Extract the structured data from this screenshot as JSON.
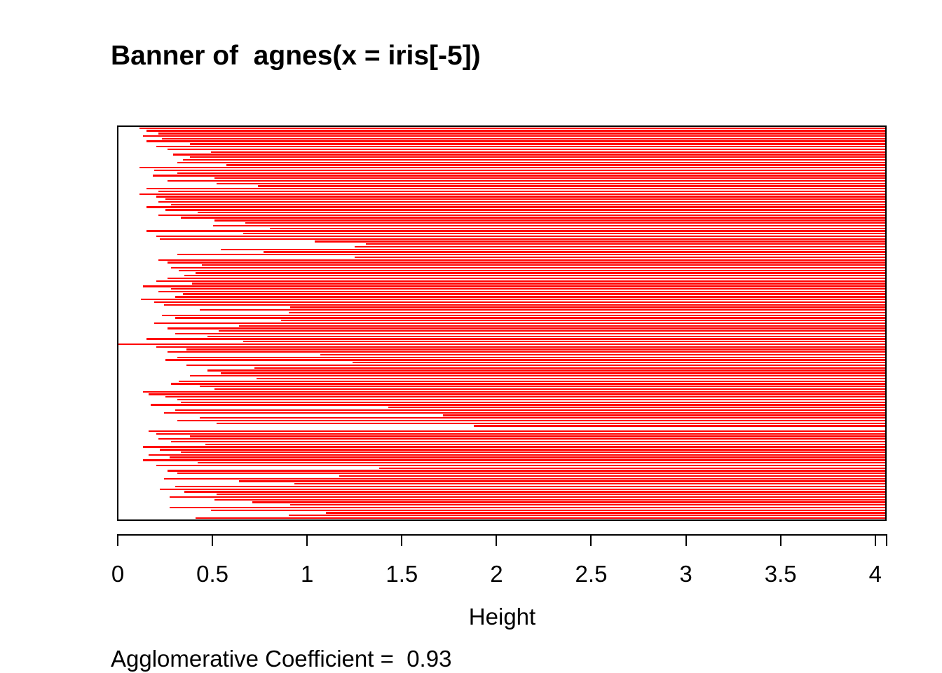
{
  "chart_data": {
    "type": "bar",
    "variant": "banner-plot",
    "title": "Banner of  agnes(x = iris[-5])",
    "xlabel": "Height",
    "footer_text": "Agglomerative Coefficient =  0.93",
    "agglomerative_coefficient": 0.93,
    "axis_min": 0,
    "axis_max": 4.06,
    "x_tick_values": [
      0,
      0.5,
      1,
      1.5,
      2,
      2.5,
      3,
      3.5,
      4
    ],
    "x_tick_labels": [
      "0",
      "0.5",
      "1",
      "1.5",
      "2",
      "2.5",
      "3",
      "3.5",
      "4"
    ],
    "end_tick_value": 4.06,
    "grid": false,
    "legend": false,
    "bar_color": "#FF0000",
    "frame_color": "#000000",
    "bar_note": "each bar spans from its merge height to axis_max (right edge of frame)",
    "merge_heights": [
      0.11,
      0.15,
      0.21,
      0.13,
      0.23,
      0.15,
      0.38,
      0.2,
      0.26,
      0.49,
      0.29,
      0.38,
      0.34,
      0.31,
      0.57,
      0.11,
      0.19,
      0.31,
      0.18,
      0.51,
      0.26,
      0.52,
      0.74,
      0.15,
      0.21,
      0.11,
      0.2,
      0.25,
      0.21,
      0.28,
      0.15,
      0.25,
      0.42,
      0.21,
      0.33,
      0.51,
      0.67,
      0.5,
      0.8,
      0.15,
      0.66,
      0.2,
      0.22,
      1.04,
      1.31,
      1.25,
      0.54,
      0.77,
      0.31,
      1.25,
      0.21,
      0.26,
      0.44,
      0.28,
      0.32,
      0.41,
      0.35,
      0.26,
      0.2,
      0.39,
      0.13,
      0.28,
      0.21,
      0.34,
      0.3,
      0.12,
      0.19,
      0.24,
      0.91,
      0.43,
      0.9,
      0.23,
      0.3,
      0.86,
      0.19,
      0.64,
      0.26,
      0.53,
      0.3,
      0.47,
      0.15,
      0.66,
      0.0,
      0.2,
      0.36,
      0.26,
      1.07,
      0.31,
      0.25,
      1.24,
      0.36,
      0.72,
      0.47,
      0.54,
      0.38,
      0.73,
      0.32,
      0.28,
      0.43,
      0.51,
      0.13,
      0.16,
      0.25,
      0.31,
      0.33,
      0.17,
      1.43,
      0.3,
      0.24,
      1.72,
      0.43,
      0.31,
      0.52,
      1.88,
      4.06,
      0.16,
      0.2,
      0.38,
      0.21,
      0.28,
      0.46,
      0.13,
      0.22,
      0.33,
      0.16,
      0.27,
      0.13,
      0.42,
      0.2,
      1.38,
      0.26,
      0.31,
      1.17,
      0.24,
      0.64,
      0.93,
      0.3,
      0.22,
      0.35,
      0.52,
      0.27,
      0.51,
      0.71,
      0.91,
      0.27,
      0.49,
      1.1,
      0.9,
      0.41
    ]
  }
}
